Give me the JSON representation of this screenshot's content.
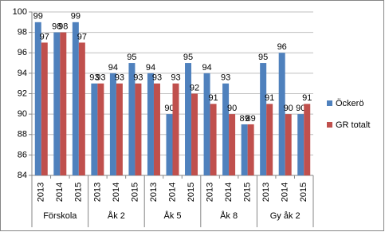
{
  "chart_data": {
    "type": "bar",
    "categories": [
      "2013",
      "2014",
      "2015",
      "2013",
      "2014",
      "2015",
      "2013",
      "2014",
      "2015",
      "2013",
      "2014",
      "2015",
      "2013",
      "2014",
      "2015"
    ],
    "groups": [
      "Förskola",
      "Åk 2",
      "Åk 5",
      "Åk 8",
      "Gy åk 2"
    ],
    "series": [
      {
        "name": "Öckerö",
        "color": "#4f81bd",
        "values": [
          99,
          98,
          99,
          93,
          94,
          95,
          94,
          90,
          95,
          94,
          93,
          89,
          95,
          96,
          90
        ]
      },
      {
        "name": "GR totalt",
        "color": "#c0504d",
        "values": [
          97,
          98,
          97,
          93,
          93,
          93,
          93,
          93,
          92,
          91,
          90,
          89,
          91,
          90,
          91
        ]
      }
    ],
    "ylim": [
      84,
      100
    ],
    "yticks": [
      84,
      86,
      88,
      90,
      92,
      94,
      96,
      98,
      100
    ],
    "grid": true,
    "legend": "right"
  }
}
